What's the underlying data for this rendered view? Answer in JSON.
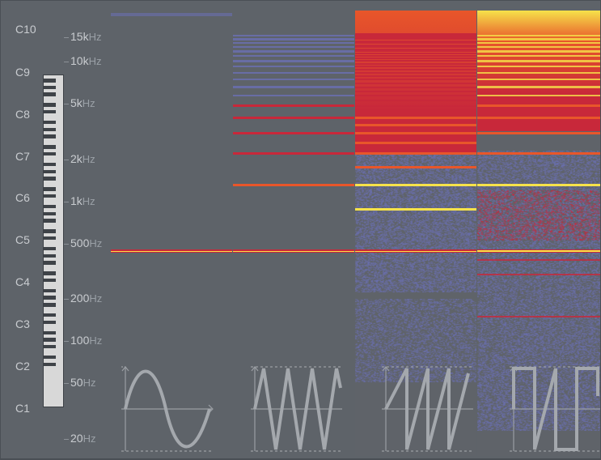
{
  "notes": [
    {
      "name": "C10",
      "freq": 16744
    },
    {
      "name": "C9",
      "freq": 8372
    },
    {
      "name": "C8",
      "freq": 4186
    },
    {
      "name": "C7",
      "freq": 2093
    },
    {
      "name": "C6",
      "freq": 1046.5
    },
    {
      "name": "C5",
      "freq": 523.25
    },
    {
      "name": "C4",
      "freq": 261.63
    },
    {
      "name": "C3",
      "freq": 130.81
    },
    {
      "name": "C2",
      "freq": 65.41
    },
    {
      "name": "C1",
      "freq": 32.7
    }
  ],
  "freq_labels": [
    {
      "num": "15k",
      "unit": "Hz",
      "freq": 15000
    },
    {
      "num": "10k",
      "unit": "Hz",
      "freq": 10000
    },
    {
      "num": "5k",
      "unit": "Hz",
      "freq": 5000
    },
    {
      "num": "2k",
      "unit": "Hz",
      "freq": 2000
    },
    {
      "num": "1k",
      "unit": "Hz",
      "freq": 1000
    },
    {
      "num": "500",
      "unit": "Hz",
      "freq": 500
    },
    {
      "num": "200",
      "unit": "Hz",
      "freq": 200
    },
    {
      "num": "100",
      "unit": "Hz",
      "freq": 100
    },
    {
      "num": "50",
      "unit": "Hz",
      "freq": 50
    },
    {
      "num": "20",
      "unit": "Hz",
      "freq": 20
    }
  ],
  "fundamental_hz": 440,
  "waveforms": [
    {
      "id": "sine",
      "icon": "sine-wave-icon",
      "harmonics": "fundamental only"
    },
    {
      "id": "triangle",
      "icon": "triangle-wave-icon",
      "harmonics": "odd, 1/n^2"
    },
    {
      "id": "sawtooth",
      "icon": "sawtooth-wave-icon",
      "harmonics": "all, 1/n"
    },
    {
      "id": "square",
      "icon": "square-wave-icon",
      "harmonics": "odd, 1/n"
    }
  ],
  "colors": {
    "background": "#5e6369",
    "label": "#c9ccd0",
    "low": "#6a6fb0",
    "mid": "#c8283a",
    "high": "#e8562a",
    "peak": "#f6e24a"
  }
}
